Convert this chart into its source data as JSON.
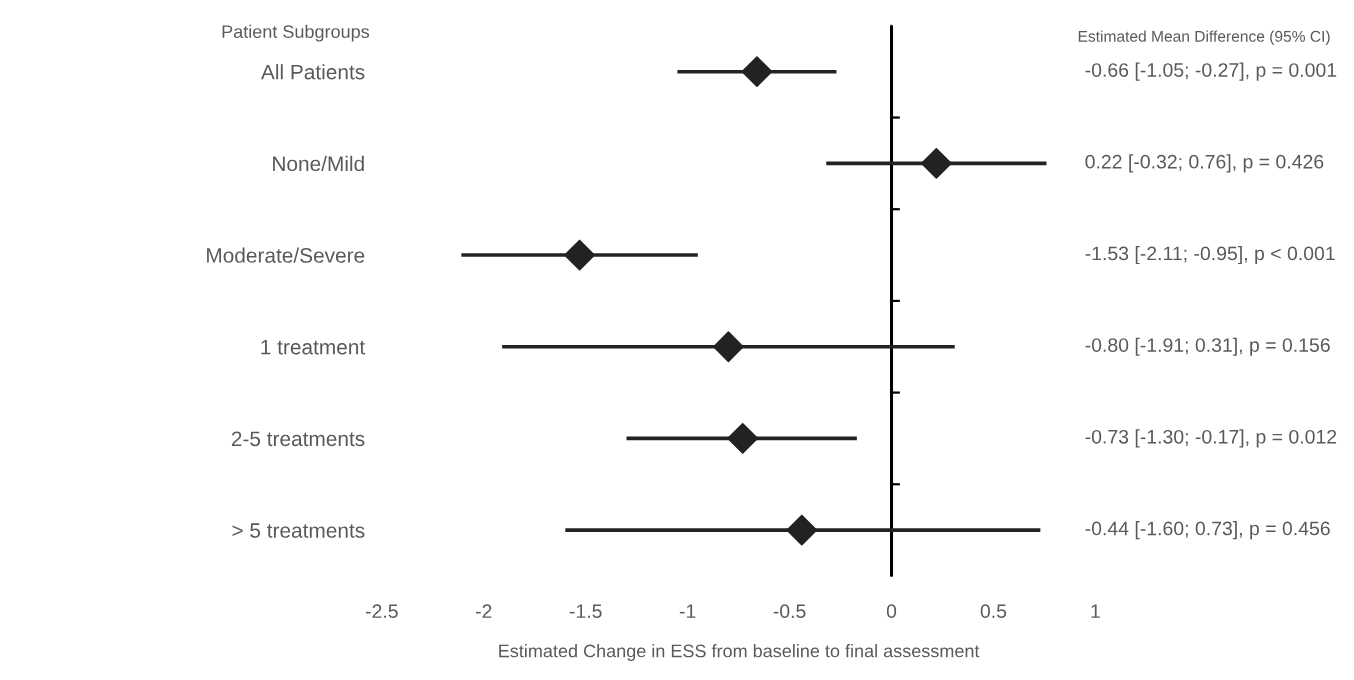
{
  "chart_data": {
    "type": "scatter",
    "orientation": "horizontal",
    "ylabel": "Patient Subgroups",
    "xlabel": "Estimated Change in ESS from baseline to final assessment",
    "categories": [
      "All Patients",
      "None/Mild",
      "Moderate/Severe",
      "1 treatment",
      "2-5 treatments",
      "> 5 treatments"
    ],
    "values": [
      -0.66,
      0.22,
      -1.53,
      -0.8,
      -0.73,
      -0.44
    ],
    "errors": [
      [
        -1.05,
        -0.27
      ],
      [
        -0.32,
        0.76
      ],
      [
        -2.11,
        -0.95
      ],
      [
        -1.91,
        0.31
      ],
      [
        -1.3,
        -0.17
      ],
      [
        -1.6,
        0.73
      ]
    ],
    "value_labels": [
      "-0.66 [-1.05; -0.27], p = 0.001",
      "0.22 [-0.32; 0.76], p = 0.426",
      "-1.53 [-2.11; -0.95], p < 0.001",
      "-0.80 [-1.91; 0.31], p = 0.156",
      "-0.73 [-1.30; -0.17], p = 0.012",
      "-0.44 [-1.60; 0.73], p = 0.456"
    ],
    "annotations": [
      "Estimated Mean Difference (95% CI)"
    ],
    "color": "#222222",
    "marker": "diamond",
    "xlim": [
      -2.5,
      1
    ],
    "xticks": [
      -2.5,
      -2,
      -1.5,
      -1,
      -0.5,
      0,
      0.5,
      1
    ],
    "ref_lines": [
      {
        "axis": "x",
        "value": 0,
        "color": "#000000"
      }
    ],
    "grid": false,
    "legend": false
  }
}
